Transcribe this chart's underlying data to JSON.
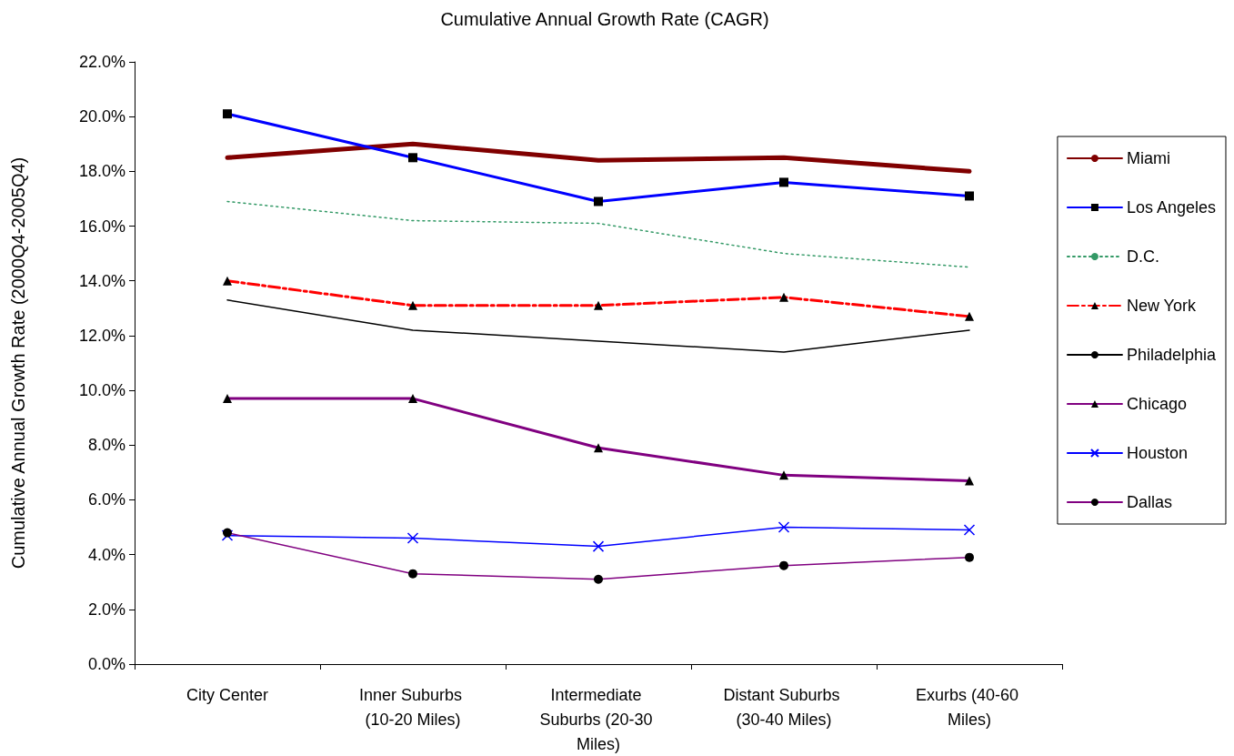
{
  "chart_data": {
    "type": "line",
    "title": "Cumulative Annual Growth Rate (CAGR)",
    "ylabel": "Cumulative Annual Growth Rate (2000Q4-2005Q4)",
    "categories": [
      "City Center",
      "Inner Suburbs (10-20 Miles)",
      "Intermediate Suburbs (20-30 Miles)",
      "Distant Suburbs (30-40 Miles)",
      "Exurbs (40-60 Miles)"
    ],
    "ylim": [
      0,
      22
    ],
    "yticks": [
      {
        "value": 0,
        "label": "0.0%"
      },
      {
        "value": 2,
        "label": "2.0%"
      },
      {
        "value": 4,
        "label": "4.0%"
      },
      {
        "value": 6,
        "label": "6.0%"
      },
      {
        "value": 8,
        "label": "8.0%"
      },
      {
        "value": 10,
        "label": "10.0%"
      },
      {
        "value": 12,
        "label": "12.0%"
      },
      {
        "value": 14,
        "label": "14.0%"
      },
      {
        "value": 16,
        "label": "16.0%"
      },
      {
        "value": 18,
        "label": "18.0%"
      },
      {
        "value": 20,
        "label": "20.0%"
      },
      {
        "value": 22,
        "label": "22.0%"
      }
    ],
    "grid": false,
    "legend": "right",
    "series": [
      {
        "name": "Miami",
        "color": "#800000",
        "marker": "none",
        "line_style": "solid",
        "values": [
          18.5,
          19.0,
          18.4,
          18.5,
          18.0
        ]
      },
      {
        "name": "Los Angeles",
        "color": "#0000ff",
        "marker": "square",
        "line_style": "solid",
        "values": [
          20.1,
          18.5,
          16.9,
          17.6,
          17.1
        ]
      },
      {
        "name": "D.C.",
        "color": "#339966",
        "marker": "none",
        "line_style": "dotted",
        "values": [
          16.9,
          16.2,
          16.1,
          15.0,
          14.5
        ]
      },
      {
        "name": "New York",
        "color": "#ff0000",
        "marker": "triangle",
        "line_style": "dashed",
        "values": [
          14.0,
          13.1,
          13.1,
          13.4,
          12.7
        ]
      },
      {
        "name": "Philadelphia",
        "color": "#000000",
        "marker": "none",
        "line_style": "solid",
        "values": [
          13.3,
          12.2,
          11.8,
          11.4,
          12.2
        ]
      },
      {
        "name": "Chicago",
        "color": "#800080",
        "marker": "triangle",
        "line_style": "solid",
        "values": [
          9.7,
          9.7,
          7.9,
          6.9,
          6.7
        ]
      },
      {
        "name": "Houston",
        "color": "#0000ff",
        "marker": "cross",
        "line_style": "solid",
        "values": [
          4.7,
          4.6,
          4.3,
          5.0,
          4.9
        ]
      },
      {
        "name": "Dallas",
        "color": "#800080",
        "marker": "circle",
        "line_style": "solid",
        "values": [
          4.8,
          3.3,
          3.1,
          3.6,
          3.9
        ]
      }
    ]
  }
}
